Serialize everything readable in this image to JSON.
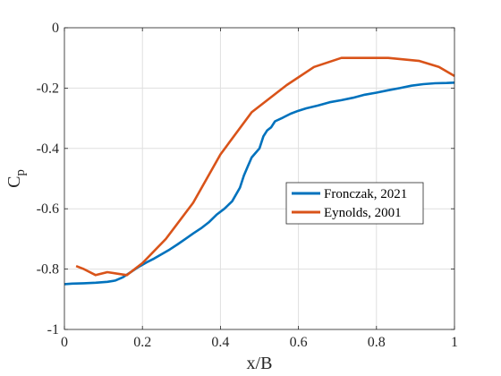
{
  "chart_data": {
    "type": "line",
    "title": "",
    "xlabel": "x/B",
    "ylabel_main": "C",
    "ylabel_sub": "p",
    "xlim": [
      0,
      1
    ],
    "ylim": [
      -1,
      0
    ],
    "xticks": [
      0,
      0.2,
      0.4,
      0.6,
      0.8,
      1
    ],
    "xtick_labels": [
      "0",
      "0.2",
      "0.4",
      "0.6",
      "0.8",
      "1"
    ],
    "yticks": [
      0,
      -0.2,
      -0.4,
      -0.6,
      -0.8,
      -1
    ],
    "ytick_labels": [
      "0",
      "-0.2",
      "-0.4",
      "-0.6",
      "-0.8",
      "-1"
    ],
    "grid": true,
    "legend_position": "center-right",
    "series": [
      {
        "name": "Fronczak, 2021",
        "color": "#0072BD",
        "x": [
          0.0,
          0.02,
          0.05,
          0.08,
          0.11,
          0.13,
          0.15,
          0.17,
          0.19,
          0.21,
          0.23,
          0.25,
          0.27,
          0.29,
          0.31,
          0.33,
          0.35,
          0.37,
          0.39,
          0.41,
          0.43,
          0.45,
          0.46,
          0.47,
          0.48,
          0.49,
          0.5,
          0.51,
          0.52,
          0.53,
          0.54,
          0.56,
          0.58,
          0.6,
          0.62,
          0.65,
          0.68,
          0.71,
          0.74,
          0.77,
          0.8,
          0.83,
          0.86,
          0.89,
          0.92,
          0.95,
          0.98,
          1.0
        ],
        "y": [
          -0.85,
          -0.848,
          -0.847,
          -0.845,
          -0.842,
          -0.838,
          -0.827,
          -0.81,
          -0.793,
          -0.778,
          -0.765,
          -0.75,
          -0.735,
          -0.718,
          -0.7,
          -0.682,
          -0.665,
          -0.645,
          -0.62,
          -0.6,
          -0.575,
          -0.53,
          -0.49,
          -0.46,
          -0.43,
          -0.415,
          -0.4,
          -0.36,
          -0.34,
          -0.33,
          -0.31,
          -0.298,
          -0.285,
          -0.275,
          -0.267,
          -0.258,
          -0.247,
          -0.24,
          -0.232,
          -0.222,
          -0.215,
          -0.207,
          -0.2,
          -0.192,
          -0.187,
          -0.184,
          -0.183,
          -0.182
        ]
      },
      {
        "name": "Eynolds, 2001",
        "color": "#D95319",
        "x": [
          0.03,
          0.05,
          0.08,
          0.11,
          0.16,
          0.2,
          0.26,
          0.33,
          0.4,
          0.48,
          0.57,
          0.64,
          0.71,
          0.83,
          0.91,
          0.96,
          1.0
        ],
        "y": [
          -0.79,
          -0.8,
          -0.82,
          -0.81,
          -0.82,
          -0.78,
          -0.7,
          -0.58,
          -0.42,
          -0.28,
          -0.19,
          -0.13,
          -0.1,
          -0.1,
          -0.11,
          -0.13,
          -0.16
        ]
      }
    ]
  }
}
